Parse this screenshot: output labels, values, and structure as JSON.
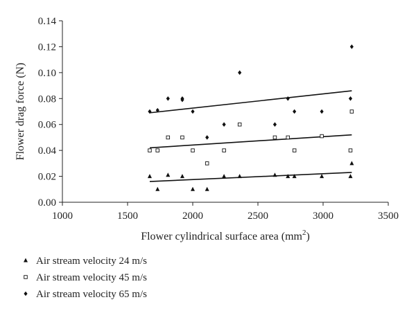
{
  "chart_data": {
    "type": "scatter",
    "xlabel": "Flower cylindrical surface area (mm",
    "xlabel_sup": "2",
    "xlabel_suffix": ")",
    "ylabel": "Flower drag force (N)",
    "xlim": [
      1000,
      3500
    ],
    "ylim": [
      0,
      0.14
    ],
    "x_ticks": [
      1000,
      1500,
      2000,
      2500,
      3000,
      3500
    ],
    "x_tick_labels": [
      "1000",
      "1500",
      "2000",
      "2500",
      "3000",
      "3500"
    ],
    "y_ticks": [
      0,
      0.02,
      0.04,
      0.06,
      0.08,
      0.1,
      0.12,
      0.14
    ],
    "y_tick_labels": [
      "0.00",
      "0.02",
      "0.04",
      "0.06",
      "0.08",
      "0.10",
      "0.12",
      "0.14"
    ],
    "grid": false,
    "legend_position": "bottom-left",
    "series": [
      {
        "name": "Air stream velocity 24 m/s",
        "marker": "triangle",
        "x": [
          1670,
          1730,
          1810,
          1920,
          2000,
          2110,
          2240,
          2360,
          2630,
          2730,
          2780,
          2990,
          3210,
          3220
        ],
        "y": [
          0.02,
          0.01,
          0.021,
          0.02,
          0.01,
          0.01,
          0.02,
          0.02,
          0.021,
          0.02,
          0.02,
          0.02,
          0.02,
          0.03
        ],
        "trend": [
          [
            1670,
            0.016
          ],
          [
            3220,
            0.023
          ]
        ]
      },
      {
        "name": "Air stream velocity 45 m/s",
        "marker": "square",
        "x": [
          1670,
          1730,
          1810,
          1920,
          2000,
          2110,
          2240,
          2360,
          2630,
          2730,
          2780,
          2990,
          3210,
          3220
        ],
        "y": [
          0.04,
          0.04,
          0.05,
          0.05,
          0.04,
          0.03,
          0.04,
          0.06,
          0.05,
          0.05,
          0.04,
          0.051,
          0.04,
          0.07
        ],
        "trend": [
          [
            1670,
            0.042
          ],
          [
            3220,
            0.052
          ]
        ]
      },
      {
        "name": "Air stream velocity 65 m/s",
        "marker": "diamond",
        "x": [
          1670,
          1730,
          1810,
          1920,
          1920,
          2000,
          2110,
          2240,
          2360,
          2630,
          2730,
          2780,
          2990,
          3210,
          3220
        ],
        "y": [
          0.07,
          0.071,
          0.08,
          0.08,
          0.079,
          0.07,
          0.05,
          0.06,
          0.1,
          0.06,
          0.08,
          0.07,
          0.07,
          0.08,
          0.12
        ],
        "trend": [
          [
            1670,
            0.069
          ],
          [
            3220,
            0.086
          ]
        ]
      }
    ]
  }
}
